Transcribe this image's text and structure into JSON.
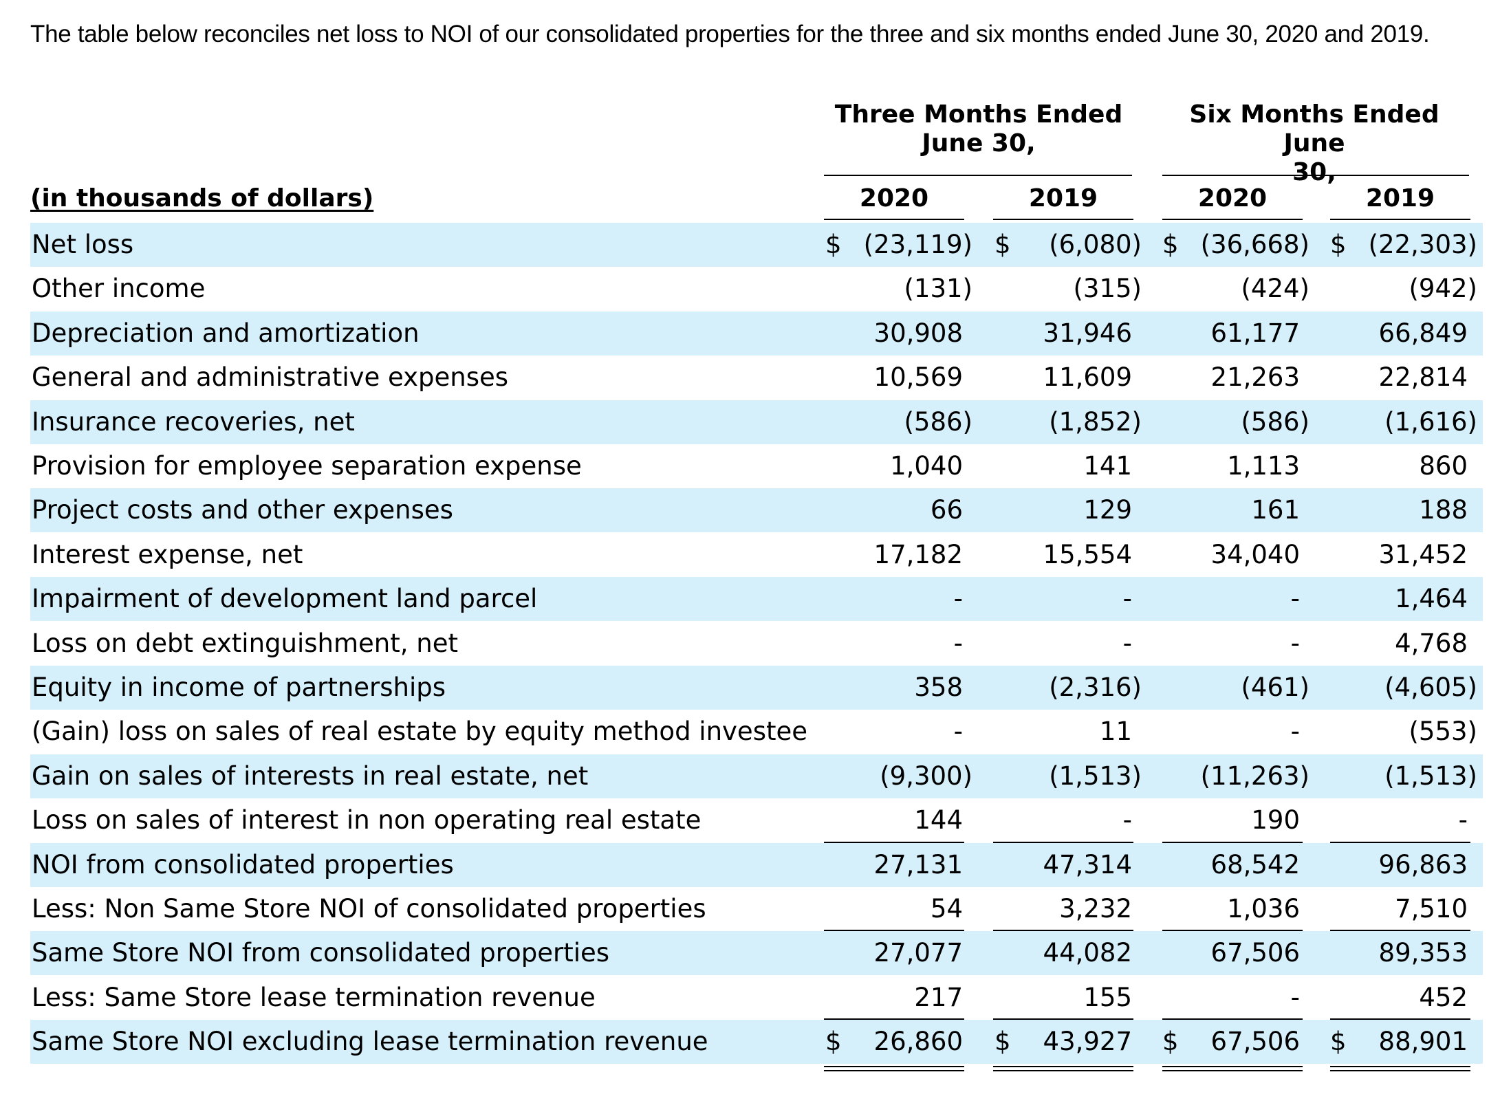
{
  "intro_text": "The table below reconciles net loss to NOI of our consolidated properties for the three and six months ended June 30, 2020 and 2019.",
  "header": {
    "group_three": [
      "Three Months Ended",
      "June 30,"
    ],
    "group_six": [
      "Six Months Ended June",
      "30,"
    ],
    "units_label": "(in thousands of dollars)",
    "years": [
      "2020",
      "2019",
      "2020",
      "2019"
    ]
  },
  "currency_symbol": "$",
  "rows": [
    {
      "label": "Net loss",
      "values": [
        "(23,119)",
        "(6,080)",
        "(36,668)",
        "(22,303)"
      ],
      "currency": true,
      "shaded": true
    },
    {
      "label": "Other income",
      "values": [
        "(131)",
        "(315)",
        "(424)",
        "(942)"
      ],
      "shaded": false
    },
    {
      "label": "Depreciation and amortization",
      "values": [
        "30,908",
        "31,946",
        "61,177",
        "66,849"
      ],
      "shaded": true
    },
    {
      "label": "General and administrative expenses",
      "values": [
        "10,569",
        "11,609",
        "21,263",
        "22,814"
      ],
      "shaded": false
    },
    {
      "label": "Insurance recoveries, net",
      "values": [
        "(586)",
        "(1,852)",
        "(586)",
        "(1,616)"
      ],
      "shaded": true
    },
    {
      "label": "Provision for employee separation expense",
      "values": [
        "1,040",
        "141",
        "1,113",
        "860"
      ],
      "shaded": false
    },
    {
      "label": "Project costs and other expenses",
      "values": [
        "66",
        "129",
        "161",
        "188"
      ],
      "shaded": true
    },
    {
      "label": "Interest expense, net",
      "values": [
        "17,182",
        "15,554",
        "34,040",
        "31,452"
      ],
      "shaded": false
    },
    {
      "label": "Impairment of development land parcel",
      "values": [
        "-",
        "-",
        "-",
        "1,464"
      ],
      "shaded": true
    },
    {
      "label": "Loss on debt extinguishment, net",
      "values": [
        "-",
        "-",
        "-",
        "4,768"
      ],
      "shaded": false
    },
    {
      "label": "Equity in income of partnerships",
      "values": [
        "358",
        "(2,316)",
        "(461)",
        "(4,605)"
      ],
      "shaded": true
    },
    {
      "label": "(Gain) loss on sales of real estate by equity method investee",
      "values": [
        "-",
        "11",
        "-",
        "(553)"
      ],
      "shaded": false
    },
    {
      "label": "Gain on sales of interests in real estate, net",
      "values": [
        "(9,300)",
        "(1,513)",
        "(11,263)",
        "(1,513)"
      ],
      "shaded": true
    },
    {
      "label": "Loss on sales of interest in non operating real estate",
      "values": [
        "144",
        "-",
        "190",
        "-"
      ],
      "shaded": false
    },
    {
      "label": "NOI from consolidated properties",
      "values": [
        "27,131",
        "47,314",
        "68,542",
        "96,863"
      ],
      "shaded": true
    },
    {
      "label": "Less: Non Same Store NOI of consolidated properties",
      "values": [
        "54",
        "3,232",
        "1,036",
        "7,510"
      ],
      "shaded": false
    },
    {
      "label": "Same Store NOI from consolidated properties",
      "values": [
        "27,077",
        "44,082",
        "67,506",
        "89,353"
      ],
      "shaded": true
    },
    {
      "label": "Less: Same Store lease termination revenue",
      "values": [
        "217",
        "155",
        "-",
        "452"
      ],
      "shaded": false
    },
    {
      "label": "Same Store NOI excluding lease termination revenue",
      "values": [
        "26,860",
        "43,927",
        "67,506",
        "88,901"
      ],
      "currency": true,
      "shaded": true
    }
  ]
}
